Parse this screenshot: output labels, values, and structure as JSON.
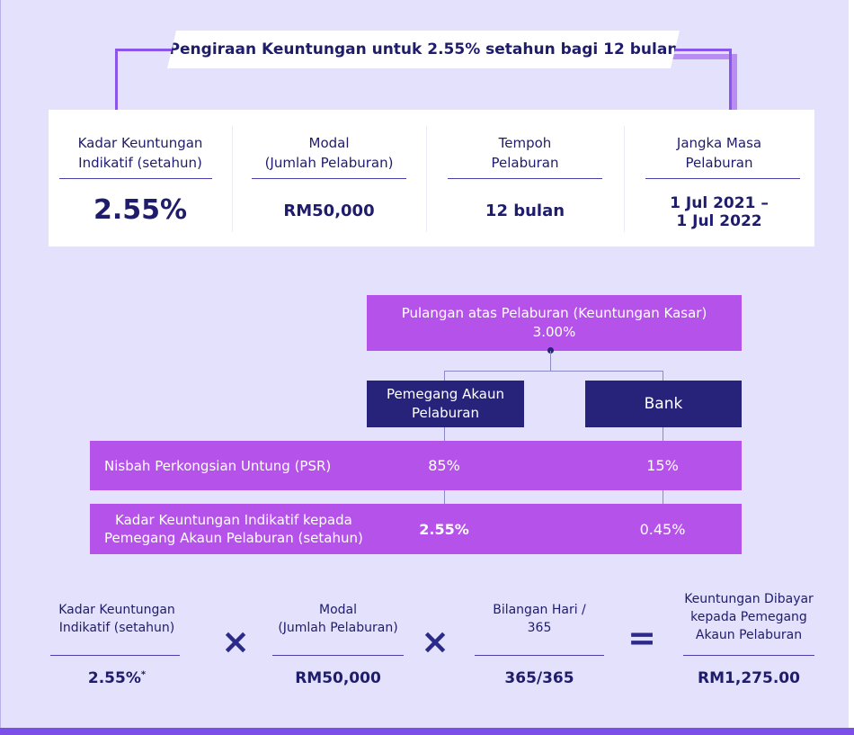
{
  "title": "Pengiraan Keuntungan untuk 2.55% setahun bagi 12 bulan",
  "summary": [
    {
      "label_line1": "Kadar Keuntungan",
      "label_line2": "Indikatif (setahun)",
      "value_line1": "2.55%",
      "value_line2": ""
    },
    {
      "label_line1": "Modal",
      "label_line2": "(Jumlah Pelaburan)",
      "value_line1": "RM50,000",
      "value_line2": ""
    },
    {
      "label_line1": "Tempoh",
      "label_line2": "Pelaburan",
      "value_line1": "12 bulan",
      "value_line2": ""
    },
    {
      "label_line1": "Jangka Masa",
      "label_line2": "Pelaburan",
      "value_line1": "1 Jul 2021 –",
      "value_line2": "1 Jul 2022"
    }
  ],
  "diagram": {
    "root_line1": "Pulangan atas Pelaburan (Keuntungan Kasar)",
    "root_line2": "3.00%",
    "left_line1": "Pemegang Akaun",
    "left_line2": "Pelaburan",
    "right_label": "Bank",
    "psr_label": "Nisbah Perkongsian Untung (PSR)",
    "psr_left": "85%",
    "psr_right": "15%",
    "rate_label_line1": "Kadar Keuntungan Indikatif kepada",
    "rate_label_line2": "Pemegang Akaun Pelaburan (setahun)",
    "rate_left": "2.55%",
    "rate_right": "0.45%"
  },
  "formula": {
    "items": [
      {
        "label_line1": "Kadar Keuntungan",
        "label_line2": "Indikatif (setahun)",
        "label_line3": "",
        "value": "2.55%",
        "marker": "*"
      },
      {
        "label_line1": "Modal",
        "label_line2": "(Jumlah Pelaburan)",
        "label_line3": "",
        "value": "RM50,000",
        "marker": ""
      },
      {
        "label_line1": "Bilangan Hari /",
        "label_line2": "365",
        "label_line3": "",
        "value": "365/365",
        "marker": ""
      },
      {
        "label_line1": "Keuntungan Dibayar",
        "label_line2": "kepada Pemegang",
        "label_line3": "Akaun Pelaburan",
        "value": "RM1,275.00",
        "marker": ""
      }
    ],
    "op_multiply": "×",
    "op_equals": "="
  }
}
